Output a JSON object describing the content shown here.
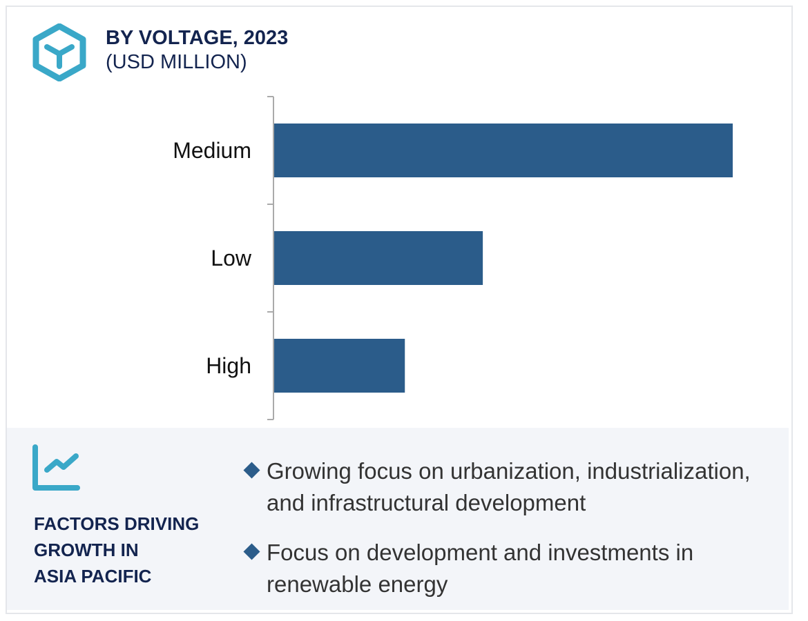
{
  "header": {
    "title": "BY VOLTAGE, 2023",
    "subtitle": "(USD MILLION)",
    "icon": "hexagon-y-icon"
  },
  "chart_data": {
    "type": "bar",
    "orientation": "horizontal",
    "categories": [
      "Medium",
      "Low",
      "High"
    ],
    "values": [
      100,
      45.5,
      28.5
    ],
    "xlim": [
      0,
      100
    ],
    "title": "BY VOLTAGE, 2023",
    "xlabel": "",
    "ylabel": "",
    "grid": false,
    "bar_color": "#2b5c8a"
  },
  "factors": {
    "icon": "line-chart-icon",
    "title_lines": [
      "FACTORS DRIVING",
      "GROWTH IN",
      "ASIA PACIFIC"
    ],
    "bullets": [
      "Growing focus on urbanization, industrialization, and infrastructural development",
      "Focus on development and investments in renewable energy"
    ]
  },
  "colors": {
    "accent": "#3aa8c8",
    "navy": "#13244f",
    "bar": "#2b5c8a",
    "panel_bg": "#f3f5f9"
  }
}
